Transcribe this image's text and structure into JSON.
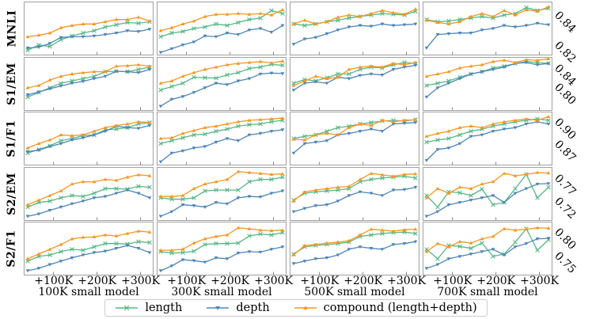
{
  "legend": {
    "items": [
      {
        "label": "length"
      },
      {
        "label": "depth"
      },
      {
        "label": "compound (length+depth)"
      }
    ]
  },
  "chart_data": {
    "type": "line",
    "grid": {
      "rows": 5,
      "cols": 4
    },
    "x_tick_labels": [
      "+100K",
      "+200K",
      "+300K"
    ],
    "col_titles": [
      "100K small model",
      "300K small model",
      "500K small model",
      "700K small model"
    ],
    "series": [
      {
        "name": "length",
        "color": "#55b884",
        "marker": "x"
      },
      {
        "name": "depth",
        "color": "#4e86b8",
        "marker": "triangle-down"
      },
      {
        "name": "compound (length+depth)",
        "color": "#f8961f",
        "marker": "triangle-up"
      }
    ],
    "rows": [
      {
        "label": "MNLI",
        "ylim": [
          0.812,
          0.848
        ],
        "yticks": [
          0.84,
          0.82
        ]
      },
      {
        "label": "S1/EM",
        "ylim": [
          0.745,
          0.862
        ],
        "yticks": [
          0.84,
          0.8
        ]
      },
      {
        "label": "S1/F1",
        "ylim": [
          0.838,
          0.912
        ],
        "yticks": [
          0.9,
          0.87
        ]
      },
      {
        "label": "S2/EM",
        "ylim": [
          0.675,
          0.792
        ],
        "yticks": [
          0.77,
          0.72
        ]
      },
      {
        "label": "S2/F1",
        "ylim": [
          0.705,
          0.818
        ],
        "yticks": [
          0.8,
          0.75
        ]
      }
    ],
    "subplots": [
      [
        {
          "length": [
            0.8155,
            0.819,
            0.818,
            0.8225,
            0.825,
            0.827,
            0.8285,
            0.831,
            0.8325,
            0.834,
            0.8335,
            0.8345
          ],
          "depth": [
            0.817,
            0.8175,
            0.82,
            0.824,
            0.8245,
            0.8245,
            0.825,
            0.826,
            0.827,
            0.8285,
            0.828,
            0.8295
          ],
          "compound": [
            0.8245,
            0.8255,
            0.827,
            0.8305,
            0.832,
            0.833,
            0.833,
            0.8345,
            0.836,
            0.836,
            0.8375,
            0.835
          ]
        },
        {
          "length": [
            0.8245,
            0.827,
            0.828,
            0.83,
            0.831,
            0.833,
            0.832,
            0.834,
            0.836,
            0.837,
            0.842,
            0.84
          ],
          "depth": [
            0.814,
            0.8165,
            0.819,
            0.821,
            0.825,
            0.8245,
            0.827,
            0.826,
            0.829,
            0.83,
            0.8275,
            0.832
          ],
          "compound": [
            0.8285,
            0.8305,
            0.833,
            0.835,
            0.838,
            0.8395,
            0.8395,
            0.84,
            0.8395,
            0.84,
            0.839,
            0.8425
          ]
        },
        {
          "length": [
            0.833,
            0.832,
            0.833,
            0.8345,
            0.8355,
            0.837,
            0.838,
            0.839,
            0.84,
            0.8395,
            0.839,
            0.8415
          ],
          "depth": [
            0.8195,
            0.823,
            0.824,
            0.8265,
            0.829,
            0.831,
            0.832,
            0.8315,
            0.833,
            0.832,
            0.8325,
            0.833
          ],
          "compound": [
            0.833,
            0.8355,
            0.833,
            0.8345,
            0.8375,
            0.839,
            0.838,
            0.84,
            0.842,
            0.8405,
            0.8395,
            0.843
          ]
        },
        {
          "length": [
            0.836,
            0.8345,
            0.835,
            0.836,
            0.837,
            0.838,
            0.837,
            0.839,
            0.84,
            0.844,
            0.842,
            0.8435
          ],
          "depth": [
            0.817,
            0.826,
            0.8265,
            0.827,
            0.827,
            0.829,
            0.83,
            0.832,
            0.831,
            0.832,
            0.8335,
            0.8325
          ],
          "compound": [
            0.8355,
            0.834,
            0.833,
            0.8345,
            0.838,
            0.84,
            0.838,
            0.842,
            0.839,
            0.8425,
            0.8415,
            0.8445
          ]
        }
      ],
      [
        {
          "length": [
            0.775,
            0.785,
            0.795,
            0.805,
            0.81,
            0.815,
            0.82,
            0.83,
            0.831,
            0.83,
            0.835,
            0.84
          ],
          "depth": [
            0.78,
            0.786,
            0.793,
            0.799,
            0.805,
            0.809,
            0.815,
            0.82,
            0.831,
            0.83,
            0.828,
            0.835
          ],
          "compound": [
            0.795,
            0.8,
            0.812,
            0.82,
            0.825,
            0.828,
            0.83,
            0.83,
            0.842,
            0.843,
            0.845,
            0.842
          ]
        },
        {
          "length": [
            0.79,
            0.798,
            0.805,
            0.818,
            0.817,
            0.816,
            0.823,
            0.828,
            0.837,
            0.84,
            0.846,
            0.844
          ],
          "depth": [
            0.755,
            0.77,
            0.776,
            0.785,
            0.795,
            0.805,
            0.802,
            0.81,
            0.815,
            0.825,
            0.827,
            0.826
          ],
          "compound": [
            0.805,
            0.81,
            0.82,
            0.828,
            0.835,
            0.84,
            0.845,
            0.848,
            0.85,
            0.852,
            0.849,
            0.853
          ]
        },
        {
          "length": [
            0.805,
            0.813,
            0.81,
            0.817,
            0.825,
            0.825,
            0.835,
            0.84,
            0.838,
            0.845,
            0.85,
            0.848
          ],
          "depth": [
            0.79,
            0.805,
            0.808,
            0.805,
            0.818,
            0.815,
            0.822,
            0.825,
            0.823,
            0.835,
            0.84,
            0.844
          ],
          "compound": [
            0.8,
            0.81,
            0.82,
            0.815,
            0.818,
            0.835,
            0.84,
            0.842,
            0.84,
            0.848,
            0.845,
            0.85
          ]
        },
        {
          "length": [
            0.8,
            0.805,
            0.81,
            0.818,
            0.825,
            0.83,
            0.838,
            0.842,
            0.848,
            0.852,
            0.85,
            0.848
          ],
          "depth": [
            0.775,
            0.795,
            0.805,
            0.815,
            0.825,
            0.83,
            0.835,
            0.84,
            0.848,
            0.85,
            0.845,
            0.848
          ],
          "compound": [
            0.82,
            0.825,
            0.83,
            0.838,
            0.842,
            0.845,
            0.852,
            0.855,
            0.85,
            0.856,
            0.855,
            0.858
          ]
        }
      ],
      [
        {
          "length": [
            0.855,
            0.86,
            0.865,
            0.872,
            0.875,
            0.879,
            0.88,
            0.887,
            0.888,
            0.89,
            0.895,
            0.897
          ],
          "depth": [
            0.857,
            0.859,
            0.864,
            0.868,
            0.873,
            0.876,
            0.88,
            0.885,
            0.892,
            0.89,
            0.889,
            0.893
          ],
          "compound": [
            0.862,
            0.868,
            0.873,
            0.88,
            0.879,
            0.88,
            0.885,
            0.89,
            0.893,
            0.895,
            0.898,
            0.897
          ]
        },
        {
          "length": [
            0.868,
            0.872,
            0.876,
            0.88,
            0.881,
            0.885,
            0.888,
            0.892,
            0.894,
            0.895,
            0.898,
            0.9
          ],
          "depth": [
            0.843,
            0.855,
            0.858,
            0.862,
            0.864,
            0.87,
            0.875,
            0.872,
            0.88,
            0.882,
            0.885,
            0.887
          ],
          "compound": [
            0.875,
            0.876,
            0.882,
            0.886,
            0.89,
            0.892,
            0.895,
            0.898,
            0.9,
            0.901,
            0.902,
            0.903
          ]
        },
        {
          "length": [
            0.875,
            0.878,
            0.88,
            0.885,
            0.89,
            0.892,
            0.895,
            0.897,
            0.899,
            0.9,
            0.899,
            0.901
          ],
          "depth": [
            0.855,
            0.868,
            0.87,
            0.872,
            0.88,
            0.882,
            0.885,
            0.888,
            0.885,
            0.895,
            0.896,
            0.897
          ],
          "compound": [
            0.874,
            0.873,
            0.88,
            0.882,
            0.88,
            0.89,
            0.895,
            0.893,
            0.9,
            0.898,
            0.9,
            0.901
          ]
        },
        {
          "length": [
            0.87,
            0.873,
            0.875,
            0.88,
            0.885,
            0.888,
            0.892,
            0.895,
            0.898,
            0.9,
            0.902,
            0.9
          ],
          "depth": [
            0.845,
            0.86,
            0.862,
            0.868,
            0.878,
            0.88,
            0.885,
            0.888,
            0.89,
            0.895,
            0.898,
            0.895
          ],
          "compound": [
            0.878,
            0.882,
            0.885,
            0.89,
            0.892,
            0.89,
            0.895,
            0.898,
            0.9,
            0.902,
            0.9,
            0.905
          ]
        }
      ],
      [
        {
          "length": [
            0.705,
            0.715,
            0.718,
            0.725,
            0.73,
            0.728,
            0.735,
            0.745,
            0.745,
            0.744,
            0.75,
            0.748
          ],
          "depth": [
            0.685,
            0.69,
            0.698,
            0.705,
            0.712,
            0.718,
            0.725,
            0.728,
            0.735,
            0.742,
            0.735,
            0.725
          ],
          "compound": [
            0.71,
            0.72,
            0.73,
            0.74,
            0.755,
            0.76,
            0.76,
            0.765,
            0.763,
            0.77,
            0.775,
            0.773
          ]
        },
        {
          "length": [
            0.725,
            0.722,
            0.722,
            0.725,
            0.74,
            0.742,
            0.742,
            0.742,
            0.76,
            0.765,
            0.765,
            0.77
          ],
          "depth": [
            0.685,
            0.695,
            0.71,
            0.708,
            0.705,
            0.715,
            0.712,
            0.725,
            0.728,
            0.727,
            0.735,
            0.74
          ],
          "compound": [
            0.728,
            0.728,
            0.73,
            0.745,
            0.755,
            0.76,
            0.765,
            0.782,
            0.78,
            0.778,
            0.776,
            0.777
          ]
        },
        {
          "length": [
            0.72,
            0.735,
            0.738,
            0.74,
            0.742,
            0.745,
            0.76,
            0.765,
            0.768,
            0.77,
            0.772,
            0.768
          ],
          "depth": [
            0.695,
            0.702,
            0.708,
            0.71,
            0.718,
            0.73,
            0.738,
            0.735,
            0.73,
            0.742,
            0.743,
            0.748
          ],
          "compound": [
            0.718,
            0.738,
            0.742,
            0.745,
            0.748,
            0.75,
            0.765,
            0.778,
            0.775,
            0.772,
            0.776,
            0.777
          ]
        },
        {
          "length": [
            0.73,
            0.705,
            0.738,
            0.736,
            0.73,
            0.744,
            0.71,
            0.715,
            0.745,
            0.776,
            0.725,
            0.748
          ],
          "depth": [
            0.685,
            0.695,
            0.71,
            0.715,
            0.72,
            0.725,
            0.73,
            0.715,
            0.735,
            0.745,
            0.755,
            0.756
          ],
          "compound": [
            0.725,
            0.745,
            0.735,
            0.748,
            0.745,
            0.755,
            0.76,
            0.778,
            0.773,
            0.776,
            0.78,
            0.779
          ]
        }
      ],
      [
        {
          "length": [
            0.735,
            0.745,
            0.748,
            0.755,
            0.76,
            0.758,
            0.765,
            0.772,
            0.772,
            0.771,
            0.776,
            0.774
          ],
          "depth": [
            0.715,
            0.72,
            0.728,
            0.735,
            0.742,
            0.748,
            0.753,
            0.756,
            0.762,
            0.768,
            0.762,
            0.753
          ],
          "compound": [
            0.74,
            0.75,
            0.76,
            0.77,
            0.782,
            0.785,
            0.786,
            0.79,
            0.788,
            0.793,
            0.798,
            0.796
          ]
        },
        {
          "length": [
            0.755,
            0.752,
            0.753,
            0.756,
            0.77,
            0.772,
            0.772,
            0.773,
            0.788,
            0.792,
            0.79,
            0.795
          ],
          "depth": [
            0.715,
            0.725,
            0.738,
            0.736,
            0.733,
            0.742,
            0.74,
            0.752,
            0.755,
            0.754,
            0.76,
            0.765
          ],
          "compound": [
            0.758,
            0.758,
            0.76,
            0.773,
            0.782,
            0.787,
            0.79,
            0.805,
            0.803,
            0.8,
            0.799,
            0.8
          ]
        },
        {
          "length": [
            0.75,
            0.765,
            0.768,
            0.77,
            0.772,
            0.775,
            0.787,
            0.79,
            0.793,
            0.795,
            0.796,
            0.793
          ],
          "depth": [
            0.73,
            0.735,
            0.74,
            0.742,
            0.748,
            0.76,
            0.765,
            0.762,
            0.76,
            0.77,
            0.772,
            0.776
          ],
          "compound": [
            0.748,
            0.768,
            0.77,
            0.773,
            0.775,
            0.778,
            0.79,
            0.802,
            0.8,
            0.798,
            0.801,
            0.802
          ]
        },
        {
          "length": [
            0.76,
            0.74,
            0.768,
            0.766,
            0.762,
            0.773,
            0.745,
            0.75,
            0.775,
            0.803,
            0.758,
            0.78
          ],
          "depth": [
            0.72,
            0.728,
            0.74,
            0.745,
            0.75,
            0.755,
            0.76,
            0.748,
            0.765,
            0.772,
            0.782,
            0.783
          ],
          "compound": [
            0.755,
            0.772,
            0.765,
            0.776,
            0.773,
            0.782,
            0.787,
            0.803,
            0.8,
            0.802,
            0.805,
            0.804
          ]
        }
      ]
    ]
  }
}
